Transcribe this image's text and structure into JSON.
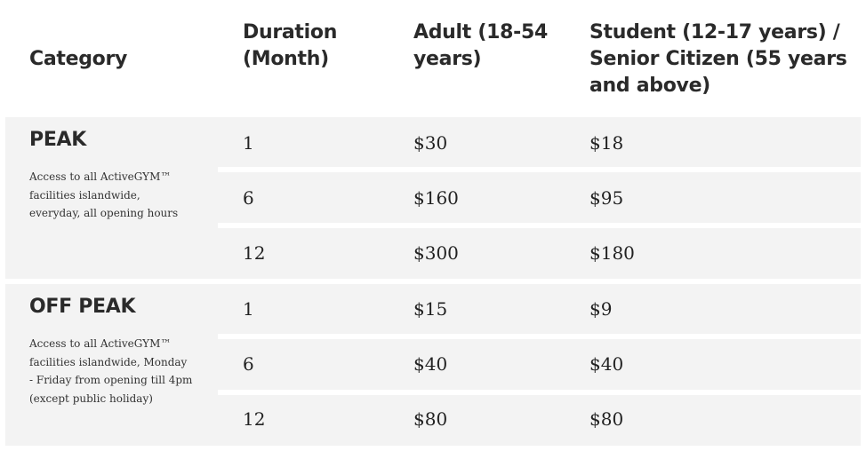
{
  "table": {
    "headers": {
      "category": "Category",
      "duration": "Duration (Month)",
      "adult": "Adult (18-54 years)",
      "student_senior": "Student (12-17 years) / Senior Citizen (55 years and above)"
    },
    "groups": [
      {
        "title": "PEAK",
        "description": "Access to all ActiveGYM™ facilities islandwide, everyday, all opening hours",
        "rows": [
          {
            "duration": "1",
            "adult": "$30",
            "student_senior": "$18"
          },
          {
            "duration": "6",
            "adult": "$160",
            "student_senior": "$95"
          },
          {
            "duration": "12",
            "adult": "$300",
            "student_senior": "$180"
          }
        ]
      },
      {
        "title": "OFF PEAK",
        "description": "Access to all ActiveGYM™ facilities islandwide, Monday - Friday from opening till 4pm (except public holiday)",
        "rows": [
          {
            "duration": "1",
            "adult": "$15",
            "student_senior": "$9"
          },
          {
            "duration": "6",
            "adult": "$40",
            "student_senior": "$40"
          },
          {
            "duration": "12",
            "adult": "$80",
            "student_senior": "$80"
          }
        ]
      }
    ]
  }
}
